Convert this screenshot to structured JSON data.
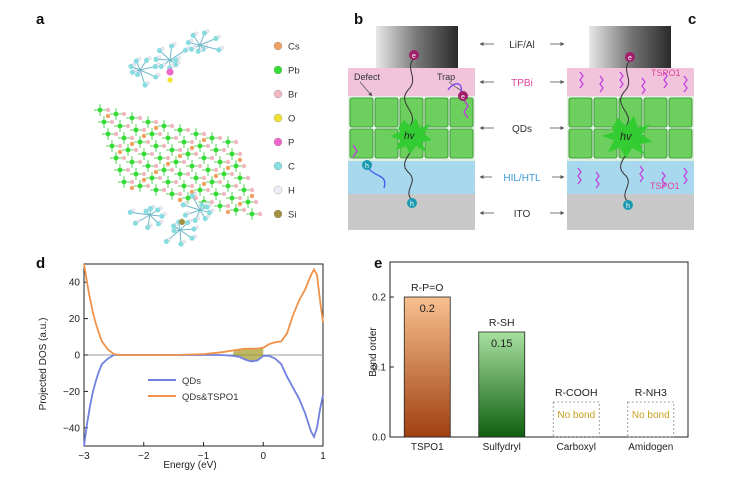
{
  "panels": {
    "a": {
      "label": "a",
      "legend": [
        {
          "name": "Cs",
          "color": "#f0a060"
        },
        {
          "name": "Pb",
          "color": "#33dd33"
        },
        {
          "name": "Br",
          "color": "#f2b8c0"
        },
        {
          "name": "O",
          "color": "#f0e030"
        },
        {
          "name": "P",
          "color": "#ee66cc"
        },
        {
          "name": "C",
          "color": "#88dde0"
        },
        {
          "name": "H",
          "color": "#eeeef8"
        },
        {
          "name": "Si",
          "color": "#a09040"
        }
      ]
    },
    "b": {
      "label": "b",
      "defect": "Defect",
      "trap": "Trap",
      "hv": "hv",
      "electron": "e",
      "hole": "h"
    },
    "c": {
      "label": "c",
      "tspo1_top": "TSPO1",
      "tspo1_bottom": "TSPO1",
      "hv": "hv",
      "electron": "e",
      "hole": "h"
    },
    "layers": {
      "cathode": "LiF/Al",
      "etl": "TPBi",
      "emitter": "QDs",
      "htl": "HIL/HTL",
      "anode": "ITO"
    },
    "colors": {
      "tpbi": "#f2c4dc",
      "qd": "#66cc66",
      "htl": "#a8d8ee",
      "ito": "#c8c8c8",
      "tpbi_text": "#e0409a",
      "htl_text": "#3a9ad8",
      "orange": "#f0924a",
      "blue": "#7080e0"
    },
    "d": {
      "label": "d",
      "ylabel": "Projected DOS (a.u.)",
      "xlabel": "Energy (eV)",
      "legend": [
        "QDs",
        "QDs&TSPO1"
      ]
    },
    "e": {
      "label": "e",
      "ylabel": "Bond order"
    }
  },
  "chart_data": [
    {
      "type": "line",
      "panel": "d",
      "xlabel": "Energy (eV)",
      "ylabel": "Projected DOS (a.u.)",
      "xlim": [
        -3,
        1
      ],
      "ylim": [
        -50,
        50
      ],
      "xticks": [
        "−3",
        "−2",
        "−1",
        "0",
        "1"
      ],
      "yticks": [
        "40",
        "20",
        "0",
        "−20",
        "−40"
      ],
      "xtick_values": [
        -3,
        -2,
        -1,
        0,
        1
      ],
      "ytick_values": [
        40,
        20,
        0,
        -20,
        -40
      ],
      "series": [
        {
          "name": "QDs",
          "color": "#7080e0",
          "x": [
            -3,
            -2.95,
            -2.9,
            -2.85,
            -2.8,
            -2.75,
            -2.7,
            -2.6,
            -2.5,
            -2.4,
            -2.3,
            -2.0,
            -1.5,
            -1.0,
            -0.7,
            -0.5,
            -0.4,
            -0.3,
            -0.2,
            -0.1,
            0,
            0.1,
            0.2,
            0.3,
            0.4,
            0.5,
            0.6,
            0.7,
            0.8,
            0.85,
            0.9,
            0.95,
            1.0
          ],
          "y": [
            -50,
            -38,
            -28,
            -20,
            -14,
            -9,
            -5,
            -2,
            0,
            0,
            0,
            0,
            0,
            0,
            0,
            -0.5,
            -1,
            -2.5,
            -3.5,
            -3,
            -0.5,
            -0.5,
            -2,
            -5,
            -12,
            -18,
            -24,
            -32,
            -42,
            -45,
            -40,
            -30,
            -22
          ]
        },
        {
          "name": "QDs&TSPO1",
          "color": "#f0924a",
          "x": [
            -3,
            -2.95,
            -2.9,
            -2.85,
            -2.8,
            -2.75,
            -2.7,
            -2.6,
            -2.5,
            -2.4,
            -2.3,
            -2.0,
            -1.5,
            -1.0,
            -0.7,
            -0.5,
            -0.4,
            -0.3,
            -0.2,
            -0.1,
            0,
            0.1,
            0.2,
            0.3,
            0.4,
            0.5,
            0.6,
            0.7,
            0.8,
            0.85,
            0.9,
            0.95,
            1.0
          ],
          "y": [
            50,
            40,
            31,
            23,
            17,
            12,
            7.5,
            3,
            0.5,
            0,
            0,
            0,
            0,
            0.5,
            1.5,
            2.5,
            3,
            3.5,
            3.5,
            3.5,
            4,
            6,
            7,
            7.5,
            12,
            22,
            30,
            36,
            44,
            47,
            44,
            30,
            18
          ]
        }
      ]
    },
    {
      "type": "bar",
      "panel": "e",
      "ylabel": "Bond order",
      "ylim": [
        0,
        0.25
      ],
      "yticks": [
        "0.2",
        "0.1",
        "0.0"
      ],
      "ytick_values": [
        0.2,
        0.1,
        0.0
      ],
      "categories": [
        "TSPO1",
        "Sulfydryl",
        "Carboxyl",
        "Amidogen"
      ],
      "values": [
        0.2,
        0.15,
        0,
        0
      ],
      "value_labels": [
        "0.2",
        "0.15",
        "No bond",
        "No bond"
      ],
      "group_labels": [
        "R-P=O",
        "R-SH",
        "R-COOH",
        "R-NH3"
      ],
      "bar_types": [
        "orange",
        "green",
        "none",
        "none"
      ]
    }
  ]
}
